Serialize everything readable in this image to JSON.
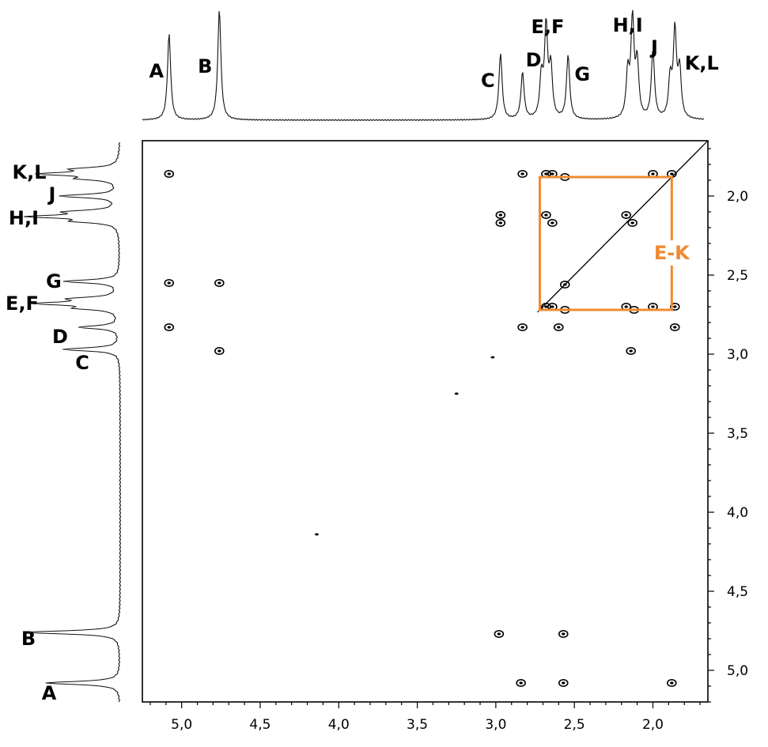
{
  "chart_data": {
    "type": "2d-nmr-cosy",
    "x_axis": {
      "ticks": [
        5.0,
        4.5,
        4.0,
        3.5,
        3.0,
        2.5,
        2.0
      ],
      "tick_labels": [
        "5,0",
        "4,5",
        "4,0",
        "3,5",
        "3,0",
        "2,5",
        "2,0"
      ],
      "reversed": true,
      "range": [
        5.25,
        1.65
      ]
    },
    "y_axis": {
      "ticks": [
        2.0,
        2.5,
        3.0,
        3.5,
        4.0,
        4.5,
        5.0
      ],
      "tick_labels": [
        "2,0",
        "2,5",
        "3,0",
        "3,5",
        "4,0",
        "4,5",
        "5,0"
      ],
      "range": [
        1.65,
        5.2
      ],
      "position": "right"
    },
    "peaks": [
      {
        "label": "A",
        "ppm": 5.08,
        "height": 0.78
      },
      {
        "label": "B",
        "ppm": 4.76,
        "height": 1.0
      },
      {
        "label": "C",
        "ppm": 2.97,
        "height": 0.6
      },
      {
        "label": "D",
        "ppm": 2.83,
        "height": 0.42
      },
      {
        "label": "E,F",
        "ppm": 2.68,
        "height": 0.82
      },
      {
        "label": "G",
        "ppm": 2.54,
        "height": 0.58
      },
      {
        "label": "H,I",
        "ppm": 2.13,
        "height": 0.88
      },
      {
        "label": "J",
        "ppm": 2.0,
        "height": 0.62
      },
      {
        "label": "K,L",
        "ppm": 1.86,
        "height": 0.78
      }
    ],
    "cross_peaks": [
      {
        "x": 5.08,
        "y": 1.86
      },
      {
        "x": 5.08,
        "y": 2.55
      },
      {
        "x": 5.08,
        "y": 2.83
      },
      {
        "x": 4.76,
        "y": 2.55
      },
      {
        "x": 4.76,
        "y": 2.98
      },
      {
        "x": 2.97,
        "y": 2.12
      },
      {
        "x": 2.97,
        "y": 2.17
      },
      {
        "x": 2.98,
        "y": 4.77
      },
      {
        "x": 2.83,
        "y": 1.86
      },
      {
        "x": 2.83,
        "y": 2.83
      },
      {
        "x": 2.84,
        "y": 5.08
      },
      {
        "x": 2.68,
        "y": 1.86
      },
      {
        "x": 2.68,
        "y": 2.12
      },
      {
        "x": 2.68,
        "y": 2.7
      },
      {
        "x": 2.64,
        "y": 1.86
      },
      {
        "x": 2.64,
        "y": 2.17
      },
      {
        "x": 2.64,
        "y": 2.7
      },
      {
        "x": 2.56,
        "y": 1.88
      },
      {
        "x": 2.56,
        "y": 2.56
      },
      {
        "x": 2.56,
        "y": 2.72
      },
      {
        "x": 2.57,
        "y": 4.77
      },
      {
        "x": 2.57,
        "y": 5.08
      },
      {
        "x": 2.6,
        "y": 2.83
      },
      {
        "x": 2.17,
        "y": 2.7
      },
      {
        "x": 2.12,
        "y": 2.72
      },
      {
        "x": 2.14,
        "y": 2.98
      },
      {
        "x": 2.0,
        "y": 1.86
      },
      {
        "x": 2.0,
        "y": 2.7
      },
      {
        "x": 1.88,
        "y": 1.86
      },
      {
        "x": 1.86,
        "y": 2.7
      },
      {
        "x": 1.86,
        "y": 2.83
      },
      {
        "x": 1.88,
        "y": 5.08
      },
      {
        "x": 2.17,
        "y": 2.12
      },
      {
        "x": 2.13,
        "y": 2.17
      }
    ],
    "highlight_box": {
      "label": "E-K",
      "x_range": [
        2.72,
        1.88
      ],
      "y_range": [
        1.88,
        2.72
      ],
      "color": "#f08a32"
    }
  }
}
